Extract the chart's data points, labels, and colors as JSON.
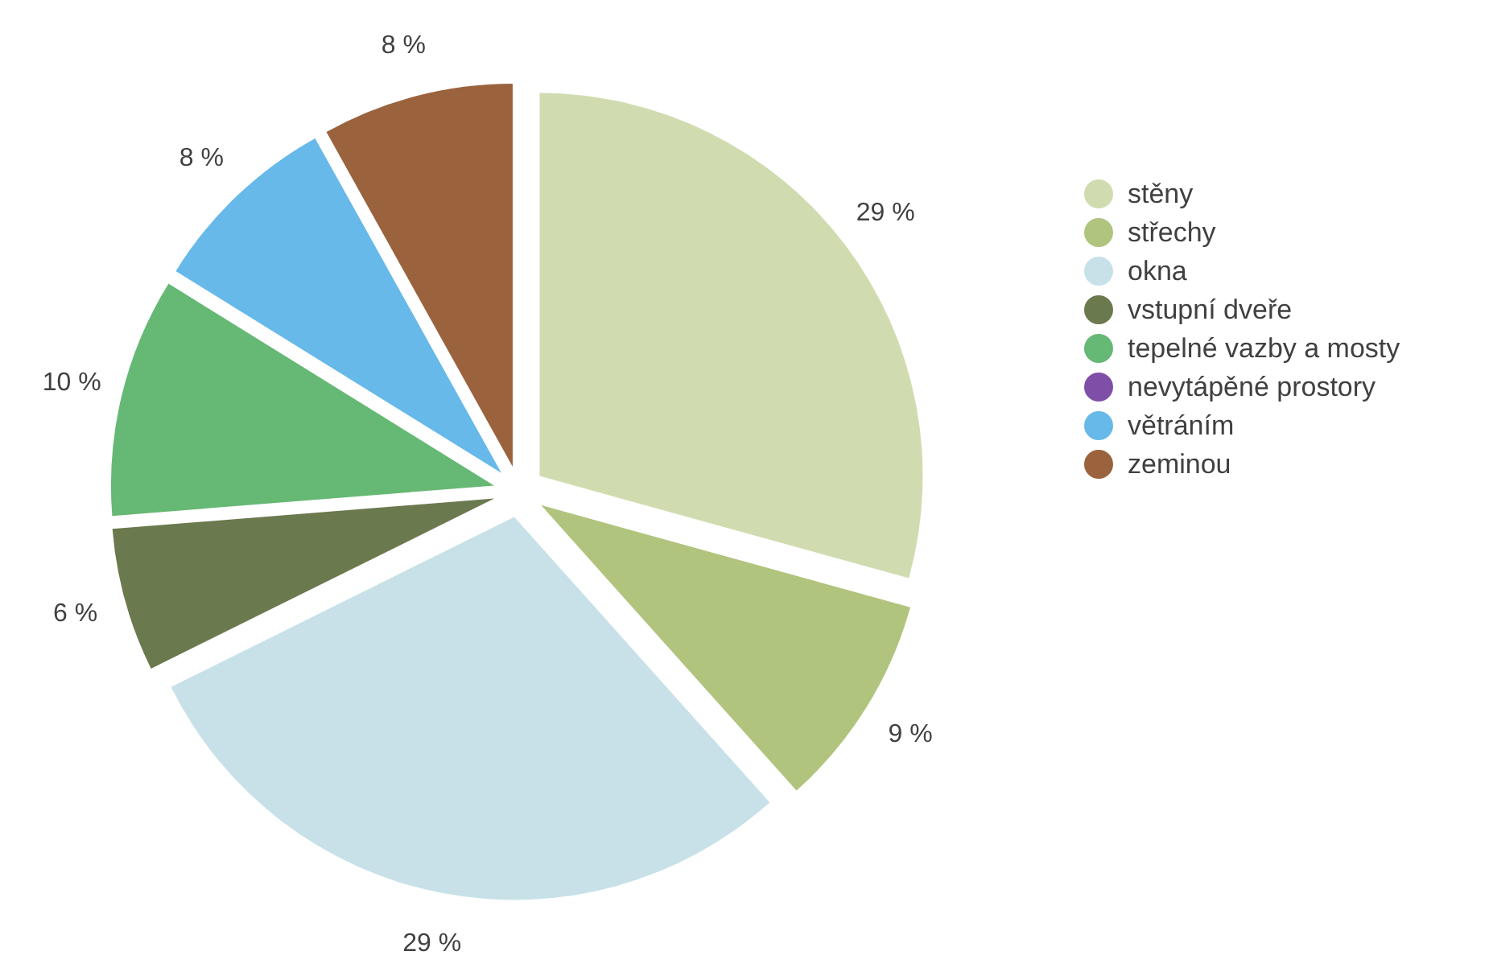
{
  "chart_data": {
    "type": "pie",
    "categories": [
      "stěny",
      "střechy",
      "okna",
      "vstupní dveře",
      "tepelné vazby a mosty",
      "nevytápěné prostory",
      "větráním",
      "zeminou"
    ],
    "values": [
      29,
      9,
      29,
      6,
      10,
      null,
      8,
      8
    ],
    "colors": [
      "#d0dcb0",
      "#b0c47e",
      "#c8e1e8",
      "#6b794e",
      "#66b875",
      "#7f4fa8",
      "#67b9ea",
      "#9b633d"
    ],
    "value_labels": [
      "29 %",
      "9 %",
      "29 %",
      "6 %",
      "10 %",
      null,
      "8 %",
      "8 %"
    ],
    "legend": "right"
  }
}
